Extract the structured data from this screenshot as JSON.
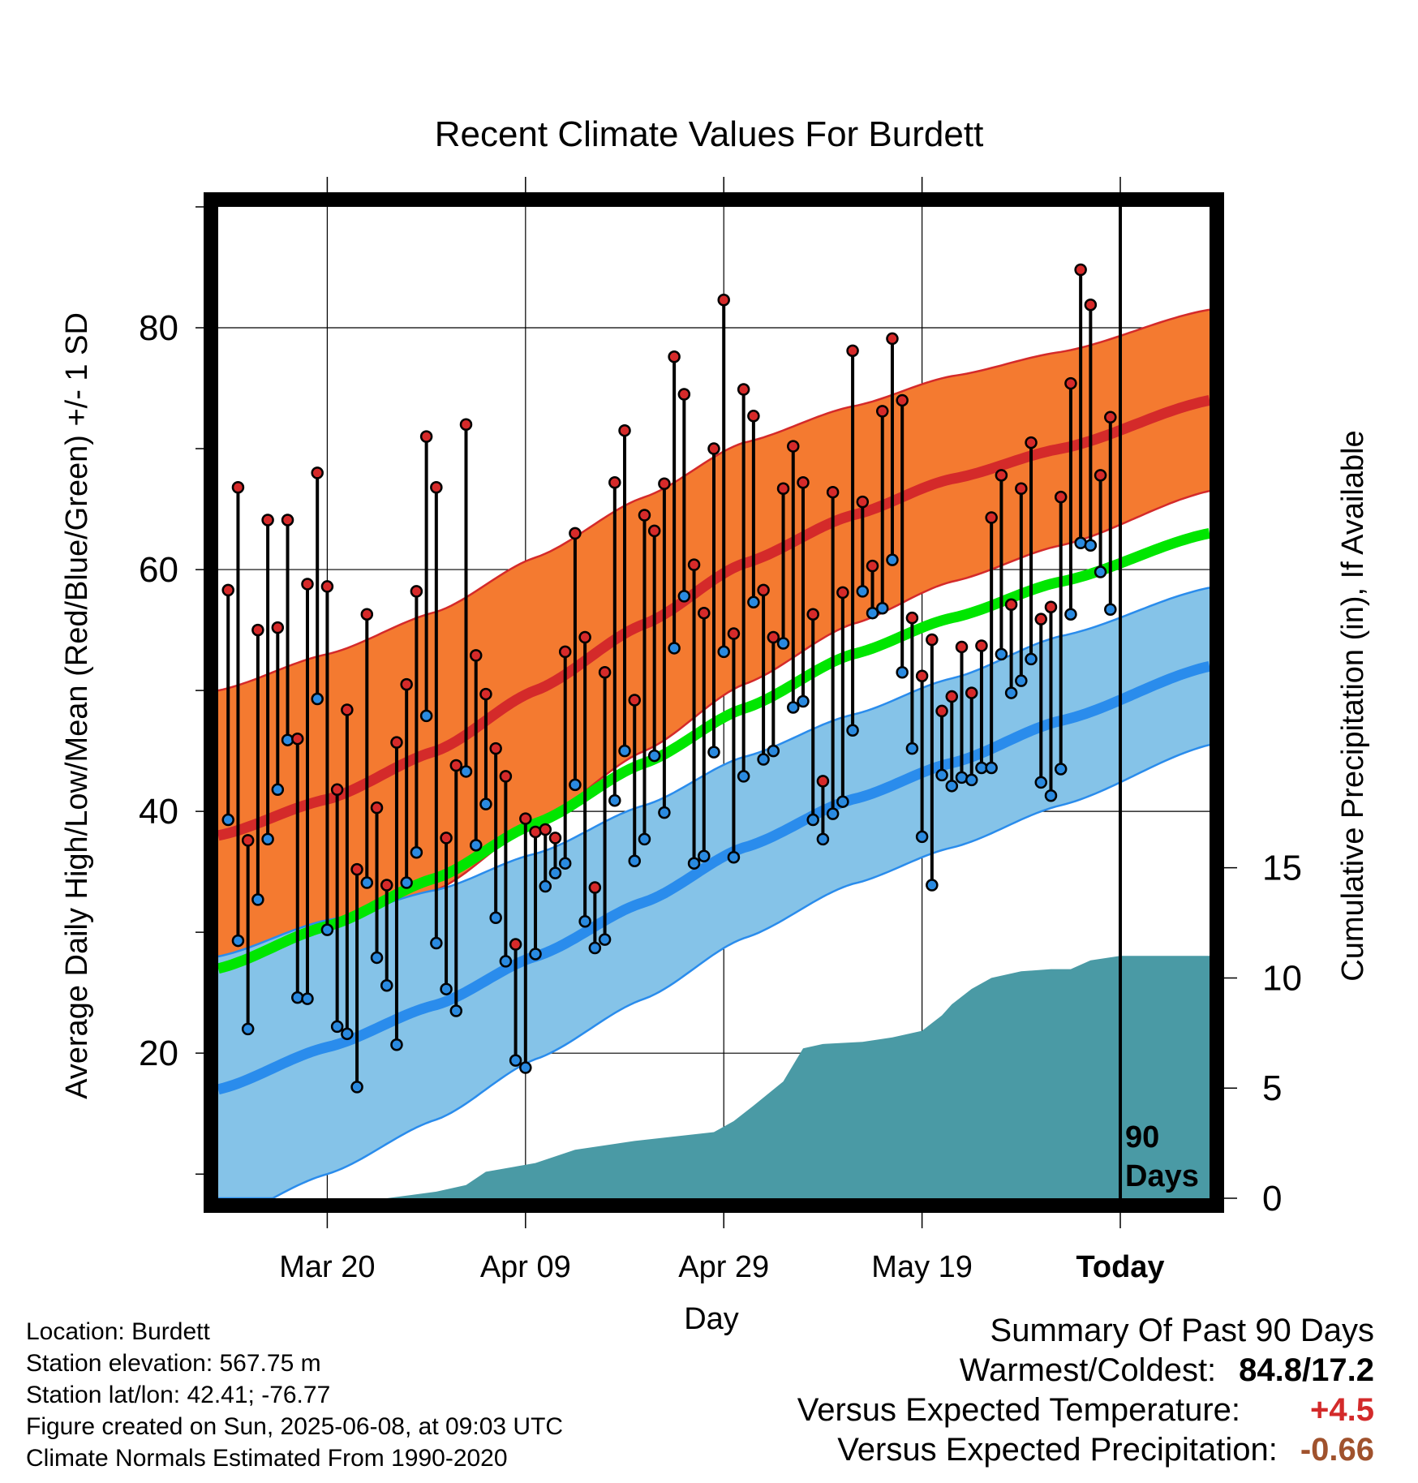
{
  "chart_data": {
    "type": "line",
    "title": "Recent Climate Values For Burdett",
    "xlabel": "Day",
    "ylabel": "Average Daily High/Low/Mean (Red/Blue/Green) +/- 1 SD",
    "ylabel_right": "Cumulative Precipitation (in), If Available",
    "x_ticks": [
      "Mar 20",
      "Apr 09",
      "Apr 29",
      "May 19",
      "Today"
    ],
    "y_ticks": [
      20,
      40,
      60,
      80
    ],
    "y_ticks_right": [
      0,
      5,
      10,
      15
    ],
    "ylim": [
      8,
      90
    ],
    "ylim_right": [
      0,
      45
    ],
    "xlim": [
      "2025-03-09",
      "2025-06-17"
    ],
    "grid": true,
    "today_marker": {
      "date": "2025-06-08",
      "label": "90 Days"
    },
    "colors": {
      "high_band": "#f47a30",
      "high_line": "#d42a2a",
      "low_band": "#85c3e8",
      "low_line": "#2a8cec",
      "mean_line": "#00e600",
      "precip": "#4a9aa5",
      "high_point": "#d62a2a",
      "low_point": "#2a8ae0"
    },
    "normals": {
      "dates": [
        "2025-03-09",
        "2025-03-20",
        "2025-03-31",
        "2025-04-10",
        "2025-04-21",
        "2025-05-01",
        "2025-05-12",
        "2025-05-22",
        "2025-06-02",
        "2025-06-17"
      ],
      "high_mean": [
        38.0,
        41.0,
        45.0,
        50.0,
        55.5,
        60.5,
        64.5,
        67.5,
        70.0,
        74.0
      ],
      "high_sd": [
        12.0,
        12.0,
        11.5,
        11.0,
        10.5,
        10.0,
        9.0,
        8.5,
        8.0,
        7.5
      ],
      "low_mean": [
        17.0,
        20.5,
        24.0,
        28.0,
        32.5,
        37.0,
        41.0,
        44.0,
        47.5,
        52.0
      ],
      "low_sd": [
        11.0,
        10.5,
        9.5,
        8.5,
        8.0,
        7.5,
        7.0,
        7.0,
        7.0,
        6.5
      ],
      "mean": [
        27.0,
        30.5,
        34.5,
        39.0,
        44.0,
        48.5,
        53.0,
        56.0,
        59.0,
        63.0
      ]
    },
    "series": [
      {
        "name": "High",
        "dates": [
          "2025-03-10",
          "2025-03-11",
          "2025-03-12",
          "2025-03-13",
          "2025-03-14",
          "2025-03-15",
          "2025-03-16",
          "2025-03-17",
          "2025-03-18",
          "2025-03-19",
          "2025-03-20",
          "2025-03-21",
          "2025-03-22",
          "2025-03-23",
          "2025-03-24",
          "2025-03-25",
          "2025-03-26",
          "2025-03-27",
          "2025-03-28",
          "2025-03-29",
          "2025-03-30",
          "2025-03-31",
          "2025-04-01",
          "2025-04-02",
          "2025-04-03",
          "2025-04-04",
          "2025-04-05",
          "2025-04-06",
          "2025-04-07",
          "2025-04-08",
          "2025-04-09",
          "2025-04-10",
          "2025-04-11",
          "2025-04-12",
          "2025-04-13",
          "2025-04-14",
          "2025-04-15",
          "2025-04-16",
          "2025-04-17",
          "2025-04-18",
          "2025-04-19",
          "2025-04-20",
          "2025-04-21",
          "2025-04-22",
          "2025-04-23",
          "2025-04-24",
          "2025-04-25",
          "2025-04-26",
          "2025-04-27",
          "2025-04-28",
          "2025-04-29",
          "2025-04-30",
          "2025-05-01",
          "2025-05-02",
          "2025-05-03",
          "2025-05-04",
          "2025-05-05",
          "2025-05-06",
          "2025-05-07",
          "2025-05-08",
          "2025-05-09",
          "2025-05-10",
          "2025-05-11",
          "2025-05-12",
          "2025-05-13",
          "2025-05-14",
          "2025-05-15",
          "2025-05-16",
          "2025-05-17",
          "2025-05-18",
          "2025-05-19",
          "2025-05-20",
          "2025-05-21",
          "2025-05-22",
          "2025-05-23",
          "2025-05-24",
          "2025-05-25",
          "2025-05-26",
          "2025-05-27",
          "2025-05-28",
          "2025-05-29",
          "2025-05-30",
          "2025-05-31",
          "2025-06-01",
          "2025-06-02",
          "2025-06-03",
          "2025-06-04",
          "2025-06-05",
          "2025-06-06",
          "2025-06-07"
        ],
        "values": [
          58.3,
          66.8,
          37.6,
          55.0,
          64.1,
          55.2,
          64.1,
          46.0,
          58.8,
          68.0,
          58.6,
          41.8,
          48.4,
          35.2,
          56.3,
          40.3,
          33.9,
          45.7,
          50.5,
          58.2,
          71.0,
          66.8,
          37.8,
          43.8,
          72.0,
          52.9,
          49.7,
          45.2,
          42.9,
          29.0,
          39.4,
          38.3,
          38.5,
          37.8,
          53.2,
          63.0,
          54.4,
          33.7,
          51.5,
          67.2,
          71.5,
          49.2,
          64.5,
          63.2,
          67.1,
          77.6,
          74.5,
          60.4,
          56.4,
          70.0,
          82.3,
          54.7,
          74.9,
          72.7,
          58.3,
          54.4,
          66.7,
          70.2,
          67.2,
          56.3,
          42.5,
          66.4,
          58.1,
          78.1,
          65.6,
          60.3,
          73.1,
          79.1,
          74.0,
          56.0,
          51.2,
          54.2,
          48.3,
          49.5,
          53.6,
          49.8,
          53.7,
          64.3,
          67.8,
          57.1,
          66.7,
          70.5,
          55.9,
          56.9,
          66.0,
          75.4,
          84.8,
          81.9,
          67.8,
          72.6
        ]
      },
      {
        "name": "Low",
        "dates": [
          "2025-03-10",
          "2025-03-11",
          "2025-03-12",
          "2025-03-13",
          "2025-03-14",
          "2025-03-15",
          "2025-03-16",
          "2025-03-17",
          "2025-03-18",
          "2025-03-19",
          "2025-03-20",
          "2025-03-21",
          "2025-03-22",
          "2025-03-23",
          "2025-03-24",
          "2025-03-25",
          "2025-03-26",
          "2025-03-27",
          "2025-03-28",
          "2025-03-29",
          "2025-03-30",
          "2025-03-31",
          "2025-04-01",
          "2025-04-02",
          "2025-04-03",
          "2025-04-04",
          "2025-04-05",
          "2025-04-06",
          "2025-04-07",
          "2025-04-08",
          "2025-04-09",
          "2025-04-10",
          "2025-04-11",
          "2025-04-12",
          "2025-04-13",
          "2025-04-14",
          "2025-04-15",
          "2025-04-16",
          "2025-04-17",
          "2025-04-18",
          "2025-04-19",
          "2025-04-20",
          "2025-04-21",
          "2025-04-22",
          "2025-04-23",
          "2025-04-24",
          "2025-04-25",
          "2025-04-26",
          "2025-04-27",
          "2025-04-28",
          "2025-04-29",
          "2025-04-30",
          "2025-05-01",
          "2025-05-02",
          "2025-05-03",
          "2025-05-04",
          "2025-05-05",
          "2025-05-06",
          "2025-05-07",
          "2025-05-08",
          "2025-05-09",
          "2025-05-10",
          "2025-05-11",
          "2025-05-12",
          "2025-05-13",
          "2025-05-14",
          "2025-05-15",
          "2025-05-16",
          "2025-05-17",
          "2025-05-18",
          "2025-05-19",
          "2025-05-20",
          "2025-05-21",
          "2025-05-22",
          "2025-05-23",
          "2025-05-24",
          "2025-05-25",
          "2025-05-26",
          "2025-05-27",
          "2025-05-28",
          "2025-05-29",
          "2025-05-30",
          "2025-05-31",
          "2025-06-01",
          "2025-06-02",
          "2025-06-03",
          "2025-06-04",
          "2025-06-05",
          "2025-06-06",
          "2025-06-07"
        ],
        "values": [
          39.3,
          29.3,
          22.0,
          32.7,
          37.7,
          41.8,
          45.9,
          24.6,
          24.5,
          49.3,
          30.2,
          22.2,
          21.6,
          17.2,
          34.1,
          27.9,
          25.6,
          20.7,
          34.1,
          36.6,
          47.9,
          29.1,
          25.3,
          23.5,
          43.3,
          37.2,
          40.6,
          31.2,
          27.6,
          19.4,
          18.8,
          28.2,
          33.8,
          34.9,
          35.7,
          42.2,
          30.9,
          28.7,
          29.4,
          40.9,
          45.0,
          35.9,
          37.7,
          44.6,
          39.9,
          53.5,
          57.8,
          35.7,
          36.3,
          44.9,
          53.2,
          36.2,
          42.9,
          57.3,
          44.3,
          45.0,
          53.9,
          48.6,
          49.1,
          39.3,
          37.7,
          39.8,
          40.8,
          46.7,
          58.2,
          56.4,
          56.8,
          60.8,
          51.5,
          45.2,
          37.9,
          33.9,
          43.0,
          42.1,
          42.8,
          42.6,
          43.6,
          43.6,
          53.0,
          49.8,
          50.8,
          52.6,
          42.4,
          41.3,
          43.5,
          56.3,
          62.2,
          62.0,
          59.8,
          56.7
        ]
      },
      {
        "name": "Cumulative Precipitation",
        "dates": [
          "2025-03-10",
          "2025-03-26",
          "2025-03-31",
          "2025-04-03",
          "2025-04-05",
          "2025-04-10",
          "2025-04-14",
          "2025-04-20",
          "2025-04-28",
          "2025-04-30",
          "2025-05-02",
          "2025-05-05",
          "2025-05-07",
          "2025-05-09",
          "2025-05-13",
          "2025-05-16",
          "2025-05-19",
          "2025-05-21",
          "2025-05-22",
          "2025-05-24",
          "2025-05-26",
          "2025-05-29",
          "2025-06-01",
          "2025-06-03",
          "2025-06-05",
          "2025-06-08",
          "2025-06-17"
        ],
        "values": [
          0.0,
          0.0,
          0.3,
          0.6,
          1.2,
          1.6,
          2.2,
          2.6,
          3.0,
          3.5,
          4.2,
          5.3,
          6.8,
          7.0,
          7.1,
          7.3,
          7.6,
          8.3,
          8.8,
          9.5,
          10.0,
          10.3,
          10.4,
          10.4,
          10.8,
          11.0,
          11.0
        ]
      }
    ]
  },
  "info": {
    "location": "Location: Burdett",
    "elevation": "Station elevation: 567.75 m",
    "latlon": "Station lat/lon: 42.41; -76.77",
    "created": "Figure created on Sun, 2025-06-08, at 09:03 UTC",
    "normals_note": "Climate Normals Estimated From 1990-2020"
  },
  "summary": {
    "heading": "Summary Of Past 90 Days",
    "warmest_coldest_label": "Warmest/Coldest:",
    "warmest_coldest_value": "84.8/17.2",
    "temp_label": "Versus Expected Temperature:",
    "temp_value": "+4.5",
    "temp_color": "#d32a2a",
    "precip_label": "Versus Expected Precipitation:",
    "precip_value": "-0.66",
    "precip_color": "#a0522d"
  }
}
